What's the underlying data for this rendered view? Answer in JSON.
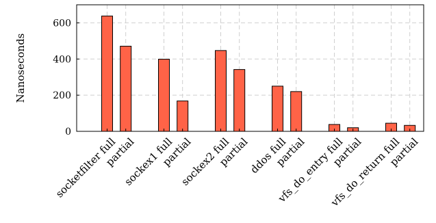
{
  "chart_data": {
    "type": "bar",
    "ylabel": "Nanoseconds",
    "xlabel": "",
    "ylim": [
      0,
      700
    ],
    "yticks": [
      0,
      200,
      400,
      600
    ],
    "grid": true,
    "bar_color": "#ff6347",
    "categories": [
      "socketfilter full",
      "partial",
      "sockex1 full",
      "partial",
      "sockex2 full",
      "partial",
      "ddos full",
      "partial",
      "vfs_do_entry full",
      "partial",
      "vfs_do_return full",
      "partial"
    ],
    "values": [
      638,
      471,
      399,
      168,
      447,
      342,
      250,
      220,
      38,
      20,
      45,
      33
    ]
  }
}
